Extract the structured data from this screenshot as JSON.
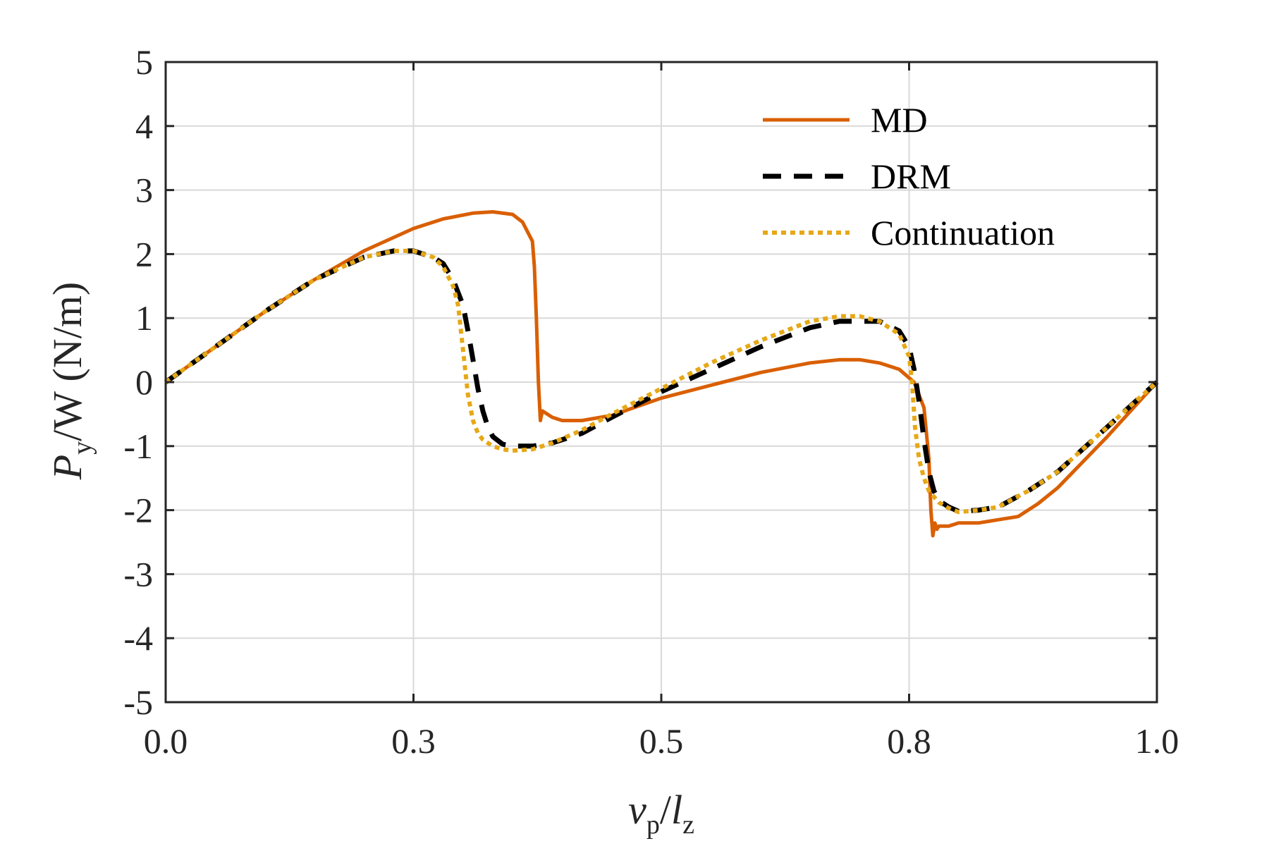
{
  "chart_data": {
    "type": "line",
    "title": "",
    "xlabel": {
      "main": "v",
      "sub": "p",
      "sep": "/",
      "main2": "l",
      "sub2": "z"
    },
    "ylabel": {
      "main": "P",
      "sub": "y",
      "rest": "/W (N/m)"
    },
    "xlim": [
      0,
      1
    ],
    "ylim": [
      -5,
      5
    ],
    "xticks": [
      0.0,
      0.25,
      0.5,
      0.75,
      1.0
    ],
    "xtick_labels": [
      "0.0",
      "0.3",
      "0.5",
      "0.8",
      "1.0"
    ],
    "yticks": [
      5,
      4,
      3,
      2,
      1,
      0,
      -1,
      -2,
      -3,
      -4,
      -5
    ],
    "ytick_labels": [
      "5",
      "4",
      "3",
      "2",
      "1",
      "0",
      "-1",
      "-2",
      "-3",
      "-4",
      "-5"
    ],
    "grid": true,
    "legend_position": "top-right",
    "series": [
      {
        "name": "MD",
        "color": "#d95f02",
        "style": "solid",
        "x": [
          0,
          0.05,
          0.1,
          0.15,
          0.2,
          0.25,
          0.28,
          0.31,
          0.33,
          0.35,
          0.36,
          0.37,
          0.372,
          0.374,
          0.376,
          0.378,
          0.38,
          0.385,
          0.39,
          0.4,
          0.42,
          0.45,
          0.5,
          0.55,
          0.6,
          0.65,
          0.68,
          0.7,
          0.72,
          0.74,
          0.755,
          0.765,
          0.77,
          0.772,
          0.774,
          0.776,
          0.778,
          0.78,
          0.785,
          0.79,
          0.8,
          0.82,
          0.84,
          0.86,
          0.88,
          0.9,
          0.95,
          1.0
        ],
        "y": [
          0,
          0.55,
          1.1,
          1.6,
          2.05,
          2.4,
          2.55,
          2.64,
          2.66,
          2.62,
          2.5,
          2.2,
          1.8,
          1.0,
          0.0,
          -0.6,
          -0.45,
          -0.5,
          -0.55,
          -0.6,
          -0.6,
          -0.52,
          -0.25,
          -0.05,
          0.15,
          0.3,
          0.35,
          0.35,
          0.3,
          0.2,
          0.0,
          -0.4,
          -1.2,
          -2.0,
          -2.4,
          -2.2,
          -2.3,
          -2.25,
          -2.25,
          -2.25,
          -2.2,
          -2.2,
          -2.15,
          -2.1,
          -1.9,
          -1.65,
          -0.85,
          0
        ]
      },
      {
        "name": "DRM",
        "color": "#000000",
        "style": "dashed",
        "x": [
          0,
          0.05,
          0.1,
          0.15,
          0.2,
          0.23,
          0.25,
          0.27,
          0.28,
          0.29,
          0.3,
          0.305,
          0.31,
          0.315,
          0.32,
          0.325,
          0.33,
          0.34,
          0.35,
          0.37,
          0.39,
          0.42,
          0.45,
          0.5,
          0.55,
          0.6,
          0.65,
          0.68,
          0.7,
          0.72,
          0.74,
          0.75,
          0.755,
          0.76,
          0.765,
          0.77,
          0.775,
          0.78,
          0.79,
          0.8,
          0.82,
          0.84,
          0.87,
          0.9,
          0.95,
          1.0
        ],
        "y": [
          0,
          0.55,
          1.1,
          1.6,
          1.95,
          2.05,
          2.05,
          1.95,
          1.85,
          1.6,
          1.2,
          0.8,
          0.35,
          -0.1,
          -0.45,
          -0.7,
          -0.85,
          -0.97,
          -1.0,
          -1.0,
          -0.95,
          -0.8,
          -0.55,
          -0.15,
          0.2,
          0.55,
          0.85,
          0.95,
          0.95,
          0.95,
          0.8,
          0.55,
          0.2,
          -0.3,
          -0.9,
          -1.4,
          -1.7,
          -1.85,
          -1.95,
          -2.02,
          -2.0,
          -1.95,
          -1.7,
          -1.4,
          -0.7,
          0
        ]
      },
      {
        "name": "Continuation",
        "color": "#e6a817",
        "style": "dotted",
        "x": [
          0,
          0.05,
          0.1,
          0.15,
          0.2,
          0.23,
          0.25,
          0.27,
          0.28,
          0.29,
          0.295,
          0.3,
          0.305,
          0.31,
          0.315,
          0.32,
          0.33,
          0.34,
          0.35,
          0.37,
          0.39,
          0.42,
          0.45,
          0.5,
          0.55,
          0.6,
          0.65,
          0.68,
          0.7,
          0.72,
          0.74,
          0.75,
          0.753,
          0.756,
          0.76,
          0.765,
          0.77,
          0.78,
          0.79,
          0.8,
          0.82,
          0.84,
          0.87,
          0.9,
          0.95,
          1.0
        ],
        "y": [
          0,
          0.55,
          1.1,
          1.6,
          1.95,
          2.05,
          2.05,
          1.95,
          1.8,
          1.5,
          1.2,
          0.5,
          -0.2,
          -0.6,
          -0.8,
          -0.9,
          -1.0,
          -1.05,
          -1.07,
          -1.05,
          -0.95,
          -0.75,
          -0.5,
          -0.1,
          0.3,
          0.65,
          0.95,
          1.03,
          1.03,
          0.95,
          0.75,
          0.4,
          0.0,
          -0.7,
          -1.2,
          -1.5,
          -1.7,
          -1.88,
          -1.97,
          -2.03,
          -2.0,
          -1.95,
          -1.7,
          -1.4,
          -0.7,
          0
        ]
      }
    ]
  }
}
